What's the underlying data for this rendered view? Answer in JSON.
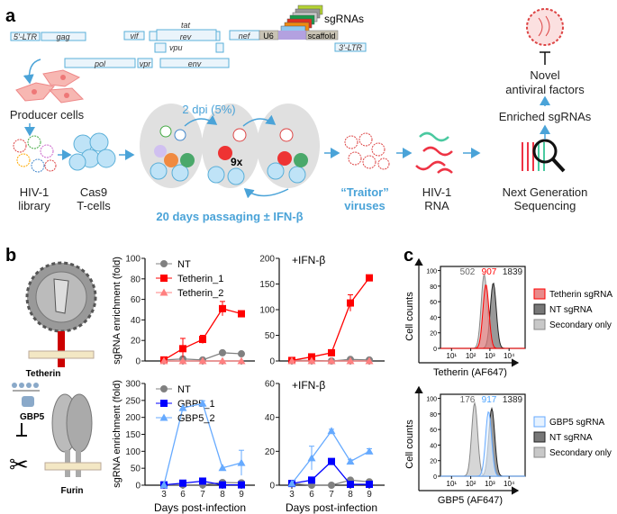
{
  "panel_a": {
    "label": "a",
    "genes": {
      "ltr5": "5'-LTR",
      "gag": "gag",
      "vif": "vif",
      "tat": "tat",
      "rev": "rev",
      "vpu": "vpu",
      "pol": "pol",
      "vpr": "vpr",
      "env": "env",
      "nef": "nef",
      "u6": "U6",
      "scaffold": "scaffold",
      "ltr3": "3'-LTR"
    },
    "sgrnas": "sgRNAs",
    "producer": "Producer cells",
    "library": [
      "HIV-1",
      "library"
    ],
    "tcells": [
      "Cas9",
      "T-cells"
    ],
    "dpi": "2 dpi (5%)",
    "cycles": "9x",
    "passaging": "20 days passaging ± IFN-β",
    "traitor": [
      "“Traitor”",
      "viruses"
    ],
    "rna": [
      "HIV-1",
      "RNA"
    ],
    "ngs": [
      "Next Generation",
      "Sequencing"
    ],
    "enriched": "Enriched sgRNAs",
    "novel": [
      "Novel",
      "antiviral factors"
    ]
  },
  "panel_b": {
    "label": "b",
    "tetherin": "Tetherin",
    "gbp5": "GBP5",
    "furin": "Furin",
    "ylabel": "sgRNA enrichment (fold)",
    "xlabel": "Days post-infection"
  },
  "panel_c": {
    "label": "c"
  },
  "colors": {
    "nt": "#808080",
    "t1": "#ff0000",
    "t2": "#ff8080",
    "g1": "#0000ff",
    "g2": "#66aaff",
    "accent": "#4aa3d8"
  },
  "chart_data": [
    {
      "type": "line",
      "title": "",
      "x": [
        3,
        6,
        7,
        8,
        9
      ],
      "ylim": [
        0,
        100
      ],
      "yticks": [
        0,
        20,
        40,
        60,
        80,
        100
      ],
      "ylabel": "sgRNA enrichment (fold)",
      "legend": "top-left",
      "series": [
        {
          "name": "NT",
          "key": "nt",
          "marker": "circle",
          "values": [
            1,
            2,
            1,
            8,
            7
          ]
        },
        {
          "name": "Tetherin_1",
          "key": "t1",
          "marker": "square",
          "values": [
            1,
            12,
            21,
            51,
            46
          ],
          "err": [
            0,
            10,
            4,
            7,
            0
          ]
        },
        {
          "name": "Tetherin_2",
          "key": "t2",
          "marker": "triangle",
          "values": [
            0,
            0,
            0,
            0,
            0
          ]
        }
      ]
    },
    {
      "type": "line",
      "title": "+IFN-β",
      "x": [
        3,
        6,
        7,
        8,
        9
      ],
      "ylim": [
        0,
        200
      ],
      "yticks": [
        0,
        50,
        100,
        150,
        200
      ],
      "series": [
        {
          "name": "NT",
          "key": "nt",
          "marker": "circle",
          "values": [
            1,
            1,
            0,
            3,
            2
          ]
        },
        {
          "name": "Tetherin_1",
          "key": "t1",
          "marker": "square",
          "values": [
            1,
            8,
            16,
            113,
            162
          ],
          "err": [
            0,
            0,
            0,
            16,
            0
          ]
        },
        {
          "name": "Tetherin_2",
          "key": "t2",
          "marker": "triangle",
          "values": [
            0,
            0,
            0,
            0,
            0
          ]
        }
      ]
    },
    {
      "type": "line",
      "title": "",
      "x": [
        3,
        6,
        7,
        8,
        9
      ],
      "ylim": [
        0,
        300
      ],
      "yticks": [
        0,
        50,
        100,
        150,
        200,
        250,
        300
      ],
      "ylabel": "sgRNA enrichment (fold)",
      "xlabel": "Days post-infection",
      "legend": "top-left",
      "series": [
        {
          "name": "NT",
          "key": "nt",
          "marker": "circle",
          "values": [
            1,
            1,
            1,
            8,
            7
          ]
        },
        {
          "name": "GBP5_1",
          "key": "g1",
          "marker": "square",
          "values": [
            1,
            6,
            12,
            1,
            1
          ]
        },
        {
          "name": "GBP5_2",
          "key": "g2",
          "marker": "triangle",
          "values": [
            1,
            228,
            241,
            51,
            66
          ],
          "err": [
            0,
            0,
            8,
            0,
            37
          ]
        }
      ]
    },
    {
      "type": "line",
      "title": "+IFN-β",
      "x": [
        3,
        6,
        7,
        8,
        9
      ],
      "ylim": [
        0,
        60
      ],
      "yticks": [
        0,
        20,
        40,
        60
      ],
      "xlabel": "Days post-infection",
      "series": [
        {
          "name": "NT",
          "key": "nt",
          "marker": "circle",
          "values": [
            1,
            0,
            0,
            3,
            2
          ]
        },
        {
          "name": "GBP5_1",
          "key": "g1",
          "marker": "square",
          "values": [
            1,
            3,
            14,
            0.5,
            0.5
          ]
        },
        {
          "name": "GBP5_2",
          "key": "g2",
          "marker": "triangle",
          "values": [
            1,
            16,
            32,
            14,
            20
          ],
          "err": [
            0,
            7,
            1,
            1,
            1.5
          ]
        }
      ]
    },
    {
      "type": "area",
      "title": "",
      "xlabel": "Tetherin (AF647)",
      "ylabel": "Cell counts",
      "xscale": "log",
      "xticks": [
        "10¹",
        "10²",
        "10³",
        "10⁴"
      ],
      "yticks": [
        0,
        20,
        40,
        60,
        80,
        100
      ],
      "mfi": [
        {
          "value": "502",
          "color": "#666666"
        },
        {
          "value": "907",
          "color": "#ff0000"
        },
        {
          "value": "1839",
          "color": "#222222"
        }
      ],
      "series": [
        {
          "name": "Secondary only",
          "peak": 502,
          "height": 95,
          "fill": "#c8c8c8",
          "stroke": "#888888"
        },
        {
          "name": "NT sgRNA",
          "peak": 1500,
          "height": 84,
          "fill": "#777777",
          "stroke": "#222222"
        },
        {
          "name": "Tetherin sgRNA",
          "peak": 620,
          "height": 82,
          "fill": "#e88a8a",
          "stroke": "#ff0000"
        }
      ]
    },
    {
      "type": "area",
      "title": "",
      "xlabel": "GBP5 (AF647)",
      "ylabel": "Cell counts",
      "xscale": "log",
      "xticks": [
        "10¹",
        "10²",
        "10³",
        "10⁴"
      ],
      "yticks": [
        0,
        20,
        40,
        60,
        80,
        100
      ],
      "mfi": [
        {
          "value": "176",
          "color": "#666666"
        },
        {
          "value": "917",
          "color": "#4aa3ff"
        },
        {
          "value": "1389",
          "color": "#222222"
        }
      ],
      "series": [
        {
          "name": "Secondary only",
          "peak": 160,
          "height": 94,
          "fill": "#c8c8c8",
          "stroke": "#888888"
        },
        {
          "name": "NT sgRNA",
          "peak": 1250,
          "height": 87,
          "fill": "#777777",
          "stroke": "#222222"
        },
        {
          "name": "GBP5 sgRNA",
          "peak": 850,
          "height": 83,
          "fill": "#e6f2ff",
          "stroke": "#66aaff"
        }
      ]
    }
  ]
}
